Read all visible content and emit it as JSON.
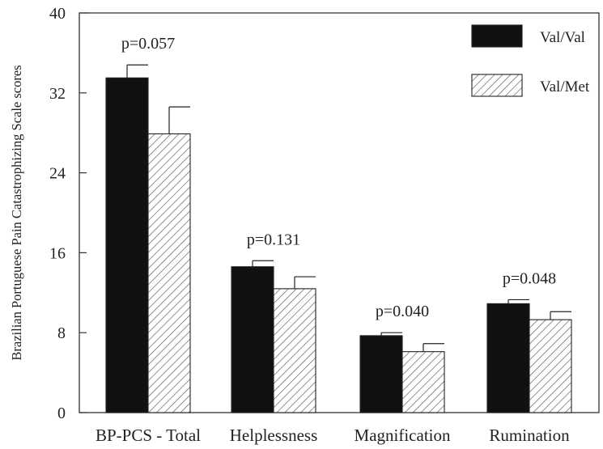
{
  "chart_data": {
    "type": "bar",
    "title": "",
    "xlabel": "",
    "ylabel": "Brazilian Portuguese Pain Catastrophizing Scale scores",
    "ylim": [
      0,
      40
    ],
    "yticks": [
      0,
      8,
      16,
      24,
      32,
      40
    ],
    "categories": [
      "BP-PCS - Total",
      "Helplessness",
      "Magnification",
      "Rumination"
    ],
    "series": [
      {
        "name": "Val/Val",
        "fill": "solid-black",
        "color": "#111111",
        "values": [
          33.5,
          14.6,
          7.7,
          10.9
        ],
        "errors": [
          1.3,
          0.6,
          0.3,
          0.4
        ]
      },
      {
        "name": "Val/Met",
        "fill": "hatched",
        "color": "#555555",
        "values": [
          27.9,
          12.4,
          6.1,
          9.3
        ],
        "errors": [
          2.7,
          1.2,
          0.8,
          0.8
        ]
      }
    ],
    "annotations": [
      "p=0.057",
      "p=0.131",
      "p=0.040",
      "p=0.048"
    ],
    "legend_position": "top-right",
    "grid": false
  }
}
